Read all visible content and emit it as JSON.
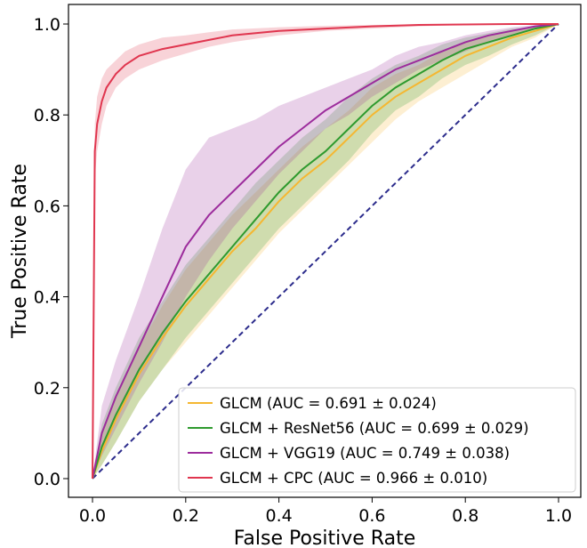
{
  "chart_data": {
    "type": "line",
    "title": "",
    "xlabel": "False Positive Rate",
    "ylabel": "True Positive Rate",
    "xlim": [
      0,
      1
    ],
    "ylim": [
      0,
      1
    ],
    "xticks": [
      "0.0",
      "0.2",
      "0.4",
      "0.6",
      "0.8",
      "1.0"
    ],
    "yticks": [
      "0.0",
      "0.2",
      "0.4",
      "0.6",
      "0.8",
      "1.0"
    ],
    "grid": false,
    "legend_position": "bottom-right",
    "series": [
      {
        "name": "GLCM (AUC = 0.691 ± 0.024)",
        "color": "#f5b731",
        "x": [
          0,
          0.02,
          0.05,
          0.1,
          0.15,
          0.2,
          0.25,
          0.3,
          0.35,
          0.4,
          0.45,
          0.5,
          0.55,
          0.6,
          0.65,
          0.7,
          0.75,
          0.8,
          0.85,
          0.9,
          0.95,
          1.0
        ],
        "y": [
          0,
          0.06,
          0.13,
          0.23,
          0.31,
          0.38,
          0.44,
          0.5,
          0.55,
          0.61,
          0.66,
          0.7,
          0.75,
          0.8,
          0.84,
          0.87,
          0.9,
          0.93,
          0.95,
          0.97,
          0.985,
          1.0
        ],
        "lower": [
          0,
          0.03,
          0.08,
          0.17,
          0.24,
          0.3,
          0.36,
          0.42,
          0.48,
          0.54,
          0.59,
          0.64,
          0.69,
          0.74,
          0.79,
          0.83,
          0.86,
          0.89,
          0.92,
          0.95,
          0.97,
          1.0
        ],
        "upper": [
          0,
          0.1,
          0.18,
          0.29,
          0.38,
          0.46,
          0.52,
          0.58,
          0.63,
          0.68,
          0.73,
          0.77,
          0.81,
          0.86,
          0.89,
          0.91,
          0.94,
          0.96,
          0.975,
          0.985,
          0.995,
          1.0
        ]
      },
      {
        "name": "GLCM + ResNet56 (AUC = 0.699 ± 0.029)",
        "color": "#2e9a2e",
        "x": [
          0,
          0.02,
          0.05,
          0.1,
          0.15,
          0.2,
          0.25,
          0.3,
          0.35,
          0.4,
          0.45,
          0.5,
          0.55,
          0.6,
          0.65,
          0.7,
          0.75,
          0.8,
          0.85,
          0.9,
          0.95,
          1.0
        ],
        "y": [
          0,
          0.07,
          0.14,
          0.24,
          0.32,
          0.39,
          0.45,
          0.51,
          0.57,
          0.63,
          0.68,
          0.72,
          0.77,
          0.82,
          0.86,
          0.89,
          0.92,
          0.945,
          0.96,
          0.975,
          0.99,
          1.0
        ],
        "lower": [
          0,
          0.03,
          0.08,
          0.17,
          0.24,
          0.31,
          0.37,
          0.43,
          0.49,
          0.55,
          0.6,
          0.65,
          0.7,
          0.76,
          0.81,
          0.84,
          0.88,
          0.91,
          0.93,
          0.955,
          0.975,
          1.0
        ],
        "upper": [
          0,
          0.12,
          0.2,
          0.31,
          0.39,
          0.47,
          0.53,
          0.59,
          0.65,
          0.7,
          0.75,
          0.79,
          0.84,
          0.88,
          0.91,
          0.93,
          0.955,
          0.97,
          0.98,
          0.99,
          0.995,
          1.0
        ]
      },
      {
        "name": "GLCM + VGG19 (AUC = 0.749 ± 0.038)",
        "color": "#9c2c9c",
        "x": [
          0,
          0.02,
          0.05,
          0.1,
          0.15,
          0.2,
          0.25,
          0.3,
          0.35,
          0.4,
          0.45,
          0.5,
          0.55,
          0.6,
          0.65,
          0.7,
          0.75,
          0.8,
          0.85,
          0.9,
          0.95,
          1.0
        ],
        "y": [
          0,
          0.1,
          0.18,
          0.29,
          0.4,
          0.51,
          0.58,
          0.63,
          0.68,
          0.73,
          0.77,
          0.81,
          0.84,
          0.87,
          0.9,
          0.92,
          0.94,
          0.96,
          0.975,
          0.985,
          0.995,
          1.0
        ],
        "lower": [
          0,
          0.05,
          0.11,
          0.21,
          0.3,
          0.4,
          0.48,
          0.55,
          0.61,
          0.67,
          0.72,
          0.77,
          0.8,
          0.84,
          0.87,
          0.9,
          0.92,
          0.94,
          0.96,
          0.975,
          0.99,
          1.0
        ],
        "upper": [
          0,
          0.16,
          0.26,
          0.4,
          0.55,
          0.68,
          0.75,
          0.77,
          0.79,
          0.82,
          0.84,
          0.86,
          0.88,
          0.9,
          0.93,
          0.95,
          0.96,
          0.975,
          0.985,
          0.993,
          0.998,
          1.0
        ]
      },
      {
        "name": "GLCM + CPC  (AUC = 0.966 ± 0.010)",
        "color": "#e0364f",
        "x": [
          0,
          0.005,
          0.01,
          0.02,
          0.03,
          0.05,
          0.07,
          0.1,
          0.15,
          0.2,
          0.25,
          0.3,
          0.4,
          0.5,
          0.6,
          0.7,
          0.8,
          0.9,
          1.0
        ],
        "y": [
          0,
          0.72,
          0.78,
          0.83,
          0.86,
          0.89,
          0.91,
          0.93,
          0.945,
          0.955,
          0.965,
          0.975,
          0.985,
          0.99,
          0.995,
          0.998,
          0.999,
          1.0,
          1.0
        ],
        "lower": [
          0,
          0.66,
          0.72,
          0.78,
          0.82,
          0.86,
          0.88,
          0.9,
          0.92,
          0.935,
          0.95,
          0.96,
          0.975,
          0.985,
          0.99,
          0.995,
          0.998,
          0.999,
          1.0
        ],
        "upper": [
          0,
          0.78,
          0.84,
          0.88,
          0.9,
          0.92,
          0.94,
          0.955,
          0.97,
          0.975,
          0.982,
          0.988,
          0.993,
          0.996,
          0.998,
          0.999,
          1.0,
          1.0,
          1.0
        ]
      }
    ],
    "reference_line": {
      "x": [
        0,
        1
      ],
      "y": [
        0,
        1
      ],
      "color": "#2c2c8c",
      "style": "dashed"
    }
  }
}
